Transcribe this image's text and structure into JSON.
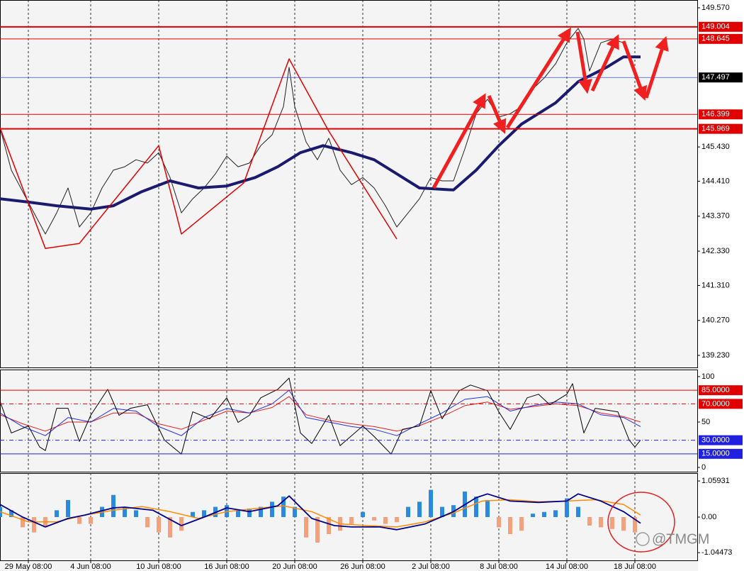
{
  "chart_data": [
    {
      "type": "line",
      "ylim": [
        138.871,
        149.802
      ],
      "yticks": [
        {
          "value": 149.57,
          "label": "149.570"
        },
        {
          "value": 145.43,
          "label": "145.430"
        },
        {
          "value": 144.41,
          "label": "144.410"
        },
        {
          "value": 143.37,
          "label": "143.370"
        },
        {
          "value": 142.33,
          "label": "142.330"
        },
        {
          "value": 141.31,
          "label": "141.310"
        },
        {
          "value": 140.27,
          "label": "140.270"
        },
        {
          "value": 139.23,
          "label": "139.230"
        }
      ],
      "levels": [
        {
          "value": 149.004,
          "color": "#e00000",
          "width": 2
        },
        {
          "value": 148.645,
          "color": "#e00000",
          "width": 1
        },
        {
          "value": 147.497,
          "color": "#3050e0",
          "width": 0.8,
          "label_color": "#000000"
        },
        {
          "value": 146.399,
          "color": "#e00000",
          "width": 1
        },
        {
          "value": 145.969,
          "color": "#e00000",
          "width": 2
        }
      ],
      "series": [
        {
          "color": "#222222",
          "width": 1,
          "x": [
            0,
            2,
            4,
            6,
            8,
            10,
            12,
            14,
            16,
            18,
            20,
            22,
            24,
            26,
            28,
            30,
            32,
            34,
            36,
            38,
            40,
            42,
            44,
            46,
            48,
            50,
            51,
            52,
            54,
            56,
            58,
            60,
            62,
            64,
            66,
            68,
            70,
            72,
            74,
            76,
            78,
            80,
            82,
            84,
            86,
            88,
            90,
            92,
            94,
            96,
            98,
            100,
            102,
            103,
            104,
            106,
            108,
            110,
            112,
            113
          ],
          "values": [
            146.0,
            144.74,
            144.1,
            143.47,
            142.84,
            143.47,
            144.21,
            143.05,
            143.47,
            144.21,
            144.74,
            144.84,
            145.05,
            144.95,
            145.26,
            144.52,
            143.47,
            143.89,
            144.21,
            144.63,
            145.16,
            144.84,
            144.95,
            145.47,
            145.79,
            146.63,
            147.8,
            146.63,
            145.58,
            145.05,
            145.69,
            144.74,
            144.31,
            144.52,
            144.21,
            143.68,
            143.05,
            143.47,
            143.89,
            144.52,
            144.42,
            144.42,
            145.37,
            146.42,
            146.85,
            146.32,
            146.42,
            146.63,
            147.16,
            147.48,
            147.9,
            148.53,
            148.96,
            148.64,
            147.69,
            148.53,
            148.64,
            148.53,
            147.69,
            147.27
          ]
        },
        {
          "color": "#1a1a6e",
          "width": 4,
          "x": [
            0,
            5,
            10,
            16,
            20,
            25,
            30,
            35,
            40,
            45,
            49,
            53,
            57,
            62,
            66,
            70,
            74,
            80,
            84,
            88,
            92,
            98,
            102,
            107,
            110,
            113
          ],
          "values": [
            143.89,
            143.79,
            143.68,
            143.58,
            143.68,
            144.1,
            144.42,
            144.21,
            144.27,
            144.52,
            144.84,
            145.26,
            145.47,
            145.26,
            145.05,
            144.63,
            144.21,
            144.15,
            144.74,
            145.47,
            146.11,
            146.74,
            147.37,
            147.8,
            148.11,
            148.11
          ]
        },
        {
          "color": "#e00000",
          "width": 1.5,
          "x": [
            0,
            8,
            14,
            28,
            32,
            43,
            51,
            58,
            70
          ],
          "values": [
            146.0,
            142.41,
            142.56,
            145.47,
            142.84,
            144.36,
            148.05,
            145.9,
            142.69
          ]
        }
      ]
    },
    {
      "type": "line",
      "ylim": [
        -4.65,
        107.75
      ],
      "yticks": [
        100,
        50,
        0
      ],
      "levels": [
        {
          "value": 85,
          "label": "85.0000",
          "color": "#e00000",
          "width": 1
        },
        {
          "value": 70,
          "label": "70.0000",
          "color": "#e00000",
          "width": 1,
          "style": "dash"
        },
        {
          "value": 30,
          "label": "30.0000",
          "color": "#2020e0",
          "width": 1,
          "style": "dash"
        },
        {
          "value": 15,
          "label": "15.0000",
          "color": "#2020e0",
          "width": 1
        }
      ],
      "series": [
        {
          "color": "#e02020",
          "width": 1,
          "x": [
            0,
            4,
            8,
            12,
            16,
            20,
            24,
            28,
            32,
            36,
            40,
            44,
            48,
            51,
            54,
            58,
            62,
            66,
            70,
            74,
            78,
            82,
            86,
            90,
            94,
            98,
            102,
            106,
            110,
            113
          ],
          "values": [
            58,
            48,
            40,
            50,
            50,
            60,
            60,
            48,
            42,
            52,
            62,
            60,
            66,
            78,
            58,
            52,
            48,
            45,
            40,
            46,
            56,
            68,
            72,
            64,
            67,
            70,
            68,
            60,
            56,
            50
          ]
        },
        {
          "color": "#2030e0",
          "width": 1,
          "x": [
            0,
            4,
            8,
            12,
            16,
            20,
            24,
            28,
            32,
            36,
            40,
            44,
            48,
            51,
            54,
            58,
            62,
            66,
            70,
            74,
            78,
            82,
            86,
            90,
            94,
            98,
            102,
            106,
            110,
            113
          ],
          "values": [
            60,
            45,
            35,
            55,
            50,
            65,
            62,
            45,
            35,
            55,
            65,
            60,
            70,
            85,
            55,
            50,
            45,
            42,
            35,
            48,
            60,
            75,
            78,
            62,
            68,
            72,
            70,
            58,
            55,
            45
          ]
        },
        {
          "color": "#000000",
          "width": 1,
          "x": [
            0,
            2,
            5,
            7,
            8,
            10,
            12,
            14,
            16,
            19,
            21,
            23,
            26,
            29,
            32,
            34,
            37,
            40,
            42,
            44,
            46,
            49,
            51,
            53,
            55,
            58,
            60,
            64,
            66,
            69,
            71,
            74,
            76,
            78,
            81,
            83,
            86,
            88,
            90,
            93,
            95,
            97,
            100,
            101,
            103,
            105,
            109,
            111,
            112,
            113
          ],
          "values": [
            72.9,
            38,
            45.7,
            22.5,
            18.6,
            65.1,
            65.1,
            28.7,
            57.4,
            86,
            57.4,
            65.1,
            69,
            30.2,
            14.7,
            61.2,
            53.5,
            76.7,
            49.6,
            57.4,
            76.7,
            86,
            98.4,
            38,
            26.4,
            57.4,
            24,
            45.7,
            34.1,
            14.7,
            41.9,
            45.7,
            84.5,
            53.5,
            84.5,
            90.7,
            84.5,
            61.2,
            41.9,
            76.7,
            80.6,
            69,
            80.6,
            92.2,
            38,
            65.1,
            61.2,
            30.2,
            22.5,
            30.2
          ]
        }
      ]
    },
    {
      "type": "bar",
      "ylim": [
        -1.27,
        1.29
      ],
      "yticks": [
        1.05931,
        {
          "value": 0,
          "label": "0.00"
        },
        -1.04473
      ],
      "xlim": [
        0,
        123
      ],
      "xticks": [
        {
          "value": 5,
          "label": "29 May 08:00"
        },
        {
          "value": 16,
          "label": "4 Jun 08:00"
        },
        {
          "value": 28,
          "label": "10 Jun 08:00"
        },
        {
          "value": 40,
          "label": "16 Jun 08:00"
        },
        {
          "value": 52,
          "label": "20 Jun 08:00"
        },
        {
          "value": 64,
          "label": "26 Jun 08:00"
        },
        {
          "value": 76,
          "label": "2 Jul 08:00"
        },
        {
          "value": 88,
          "label": "8 Jul 08:00"
        },
        {
          "value": 100,
          "label": "14 Jul 08:00"
        },
        {
          "value": 112,
          "label": "18 Jul 08:00"
        }
      ],
      "bars": {
        "positive_color": "#2a8ae0",
        "negative_color": "#f4a07c",
        "x": [
          0,
          2,
          4,
          6,
          8,
          10,
          12,
          14,
          16,
          18,
          20,
          22,
          24,
          26,
          28,
          30,
          32,
          34,
          36,
          38,
          40,
          42,
          44,
          46,
          48,
          50,
          52,
          54,
          56,
          58,
          60,
          62,
          64,
          66,
          68,
          70,
          72,
          74,
          76,
          78,
          80,
          82,
          84,
          86,
          88,
          90,
          92,
          94,
          96,
          98,
          100,
          102,
          104,
          106,
          108,
          110,
          112
        ],
        "values": [
          0.3,
          0.2,
          -0.3,
          -0.45,
          -0.3,
          0.2,
          0.5,
          -0.2,
          -0.2,
          0.3,
          0.65,
          0.3,
          0.2,
          -0.3,
          -0.45,
          -0.6,
          -0.4,
          0.15,
          0.2,
          0.3,
          0.35,
          0.2,
          0.25,
          0.3,
          0.45,
          0.6,
          0.3,
          -0.6,
          -0.75,
          -0.5,
          -0.4,
          -0.2,
          0.15,
          -0.1,
          -0.2,
          -0.15,
          0.3,
          0.45,
          0.8,
          0.3,
          0.35,
          0.75,
          0.6,
          0.5,
          -0.3,
          -0.5,
          -0.4,
          0.1,
          0.15,
          0.2,
          0.55,
          0.3,
          -0.25,
          -0.3,
          -0.35,
          -0.4,
          -0.45
        ]
      },
      "series": [
        {
          "color": "#ff8c00",
          "width": 1.5,
          "x": [
            0,
            5,
            10,
            15,
            20,
            25,
            30,
            35,
            40,
            45,
            50,
            55,
            60,
            65,
            70,
            75,
            80,
            85,
            90,
            95,
            100,
            105,
            110,
            113
          ],
          "values": [
            0.16,
            -0.14,
            -0.14,
            0.06,
            0.2,
            0.31,
            0.16,
            -0.04,
            0.16,
            0.25,
            0.33,
            0.16,
            -0.2,
            -0.25,
            -0.29,
            -0.14,
            0.12,
            0.47,
            0.51,
            0.45,
            0.47,
            0.51,
            0.37,
            0.06
          ]
        },
        {
          "color": "#00008b",
          "width": 1.8,
          "x": [
            0,
            4,
            8,
            12,
            15,
            20,
            22,
            27,
            32,
            36,
            40,
            44,
            49,
            51,
            55,
            59,
            62,
            67,
            70,
            75,
            80,
            84,
            86,
            90,
            95,
            100,
            102,
            106,
            110,
            113
          ],
          "values": [
            0.37,
            0,
            -0.29,
            -0.04,
            0.06,
            0.27,
            0.29,
            0.2,
            -0.25,
            0,
            0.27,
            0.16,
            0.33,
            0.62,
            -0.04,
            -0.25,
            -0.29,
            -0.29,
            -0.37,
            -0.2,
            0.16,
            0.57,
            0.68,
            0.47,
            0.43,
            0.47,
            0.68,
            0.47,
            0.16,
            -0.18
          ]
        }
      ]
    }
  ],
  "watermark": "@TMGM"
}
